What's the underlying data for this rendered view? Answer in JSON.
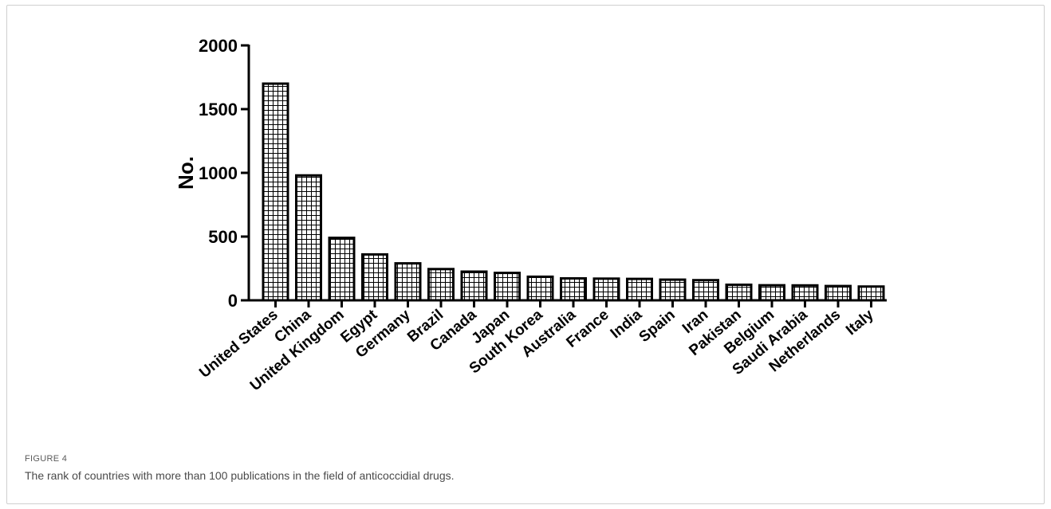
{
  "figure": {
    "label": "FIGURE 4",
    "caption": "The rank of countries with more than 100 publications in the field of anticoccidial drugs."
  },
  "chart_data": {
    "type": "bar",
    "categories": [
      "United States",
      "China",
      "United Kingdom",
      "Egypt",
      "Germany",
      "Brazil",
      "Canada",
      "Japan",
      "South Korea",
      "Australia",
      "France",
      "India",
      "Spain",
      "Iran",
      "Pakistan",
      "Belgium",
      "Saudi Arabia",
      "Netherlands",
      "Italy"
    ],
    "values": [
      1700,
      980,
      490,
      360,
      290,
      245,
      225,
      215,
      185,
      172,
      170,
      168,
      162,
      158,
      122,
      118,
      117,
      112,
      108
    ],
    "ylabel": "No.",
    "xlabel": "",
    "ylim": [
      0,
      2000
    ],
    "yticks": [
      0,
      500,
      1000,
      1500,
      2000
    ],
    "bar_fill": "crosshatch-grid",
    "bar_stroke": "#000000",
    "grid": false
  }
}
